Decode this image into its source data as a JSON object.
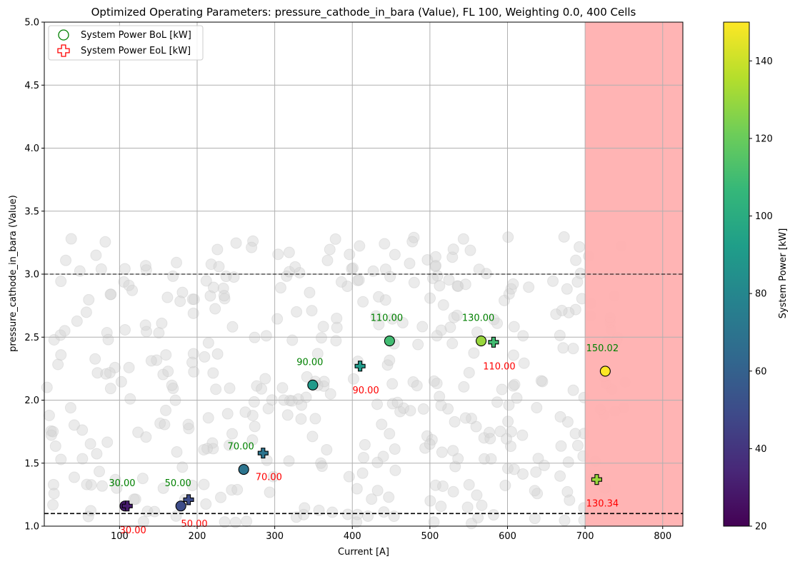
{
  "chart_data": {
    "type": "scatter",
    "title": "Optimized Operating Parameters: pressure_cathode_in_bara (Value), FL 100, Weighting 0.0, 400 Cells",
    "xlabel": "Current [A]",
    "ylabel": "pressure_cathode_in_bara (Value)",
    "xlim": [
      3,
      826
    ],
    "ylim": [
      1.0,
      5.0
    ],
    "xticks": [
      100,
      200,
      300,
      400,
      500,
      600,
      700,
      800
    ],
    "yticks": [
      1.0,
      1.5,
      2.0,
      2.5,
      3.0,
      3.5,
      4.0,
      4.5,
      5.0
    ],
    "grid": true,
    "legend_position": "top-left",
    "limits": [
      {
        "y": 1.1,
        "style": "dashed-bold"
      },
      {
        "y": 3.0,
        "style": "dashed"
      }
    ],
    "infeasible_region": {
      "x_from": 700,
      "x_to": 826,
      "color": "#ffb0b0"
    },
    "colorbar": {
      "label": "System Power [kW]",
      "range": [
        20,
        150
      ],
      "ticks": [
        20,
        40,
        60,
        80,
        100,
        120,
        140
      ],
      "colormap": "viridis"
    },
    "background_points_color": "#d3d3d3",
    "series": [
      {
        "name": "System Power BoL [kW]",
        "marker": "circle",
        "label_color": "#008000",
        "points": [
          {
            "x": 107,
            "y": 1.16,
            "power": 30.0,
            "label": "30.00"
          },
          {
            "x": 179,
            "y": 1.16,
            "power": 50.0,
            "label": "50.00"
          },
          {
            "x": 260,
            "y": 1.45,
            "power": 70.0,
            "label": "70.00"
          },
          {
            "x": 349,
            "y": 2.12,
            "power": 90.0,
            "label": "90.00"
          },
          {
            "x": 448,
            "y": 2.47,
            "power": 110.0,
            "label": "110.00"
          },
          {
            "x": 566,
            "y": 2.47,
            "power": 130.0,
            "label": "130.00"
          },
          {
            "x": 726,
            "y": 2.23,
            "power": 150.02,
            "label": "150.02"
          }
        ]
      },
      {
        "name": "System Power EoL [kW]",
        "marker": "plus",
        "label_color": "#ff0000",
        "points": [
          {
            "x": 110,
            "y": 1.16,
            "power": 30.0,
            "label": "30.00"
          },
          {
            "x": 189,
            "y": 1.21,
            "power": 50.0,
            "label": "50.00"
          },
          {
            "x": 285,
            "y": 1.58,
            "power": 70.0,
            "label": "70.00"
          },
          {
            "x": 410,
            "y": 2.27,
            "power": 90.0,
            "label": "90.00"
          },
          {
            "x": 582,
            "y": 2.46,
            "power": 110.0,
            "label": "110.00"
          },
          {
            "x": 715,
            "y": 1.37,
            "power": 130.34,
            "label": "130.34"
          }
        ]
      }
    ]
  }
}
